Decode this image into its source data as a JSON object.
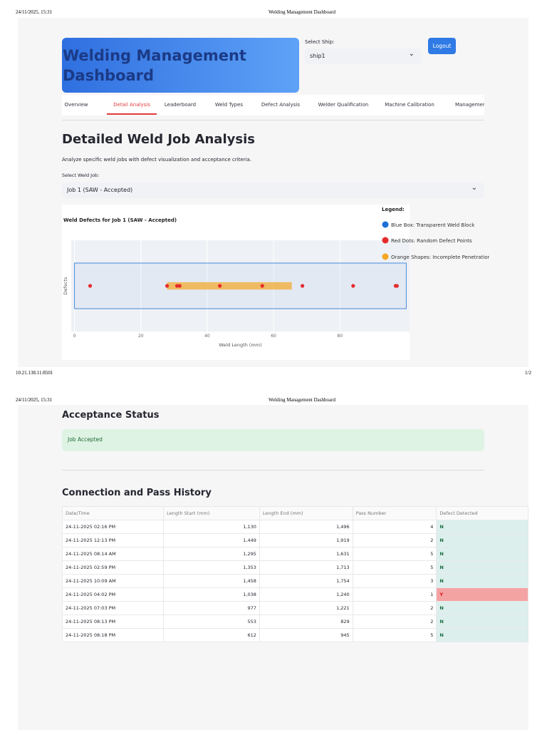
{
  "print_header": {
    "date": "24/11/2025, 15:31",
    "title": "Welding Management Dashboard"
  },
  "print_footer": {
    "url": "10.21.138.11:8501",
    "page": "1/2"
  },
  "print_header_2": {
    "date": "24/11/2025, 15:31",
    "title": "Welding Management Dashboard"
  },
  "app": {
    "title": "Welding Management Dashboard",
    "ship_label": "Select Ship:",
    "ship_value": "ship1",
    "logout": "Logout",
    "tabs": [
      "Overview",
      "Detail Analysis",
      "Leaderboard",
      "Weld Types",
      "Defect Analysis",
      "Welder Qualification",
      "Machine Calibration",
      "Management"
    ],
    "active_tab": 1
  },
  "section": {
    "heading": "Detailed Weld Job Analysis",
    "description": "Analyze specific weld jobs with defect visualization and acceptance criteria.",
    "job_label": "Select Weld Job:",
    "job_value": "Job 1 (SAW - Accepted)"
  },
  "chart_data": {
    "type": "scatter",
    "title": "Weld Defects for Job 1 (SAW - Accepted)",
    "xlabel": "Weld Length (mm)",
    "ylabel": "Defects",
    "xlim": [
      -1,
      101
    ],
    "ylim": [
      -1,
      1
    ],
    "xticks": [
      0,
      20,
      40,
      60,
      80
    ],
    "legend_title": "Legend:",
    "weld_block": {
      "name": "Blue Box: Transparent Weld Block",
      "color": "#1f6fd6",
      "x": [
        0,
        100
      ],
      "y": [
        -0.5,
        0.5
      ]
    },
    "series": [
      {
        "name": "Red Dots: Random Defect Points",
        "color": "#e52b2b",
        "x": [
          4.7,
          27.9,
          30.9,
          31.7,
          43.8,
          56.6,
          68.7,
          84.0,
          96.8,
          97.2
        ],
        "values": [
          0,
          0,
          0,
          0,
          0,
          0,
          0,
          0,
          0,
          0
        ]
      }
    ],
    "penetration": {
      "name": "Orange Shapes: Incomplete Penetration",
      "color": "#f5a623",
      "x": [
        27.9,
        65.5
      ],
      "y": [
        -0.05,
        0.05
      ]
    }
  },
  "acceptance": {
    "heading": "Acceptance Status",
    "status": "Job Accepted"
  },
  "history": {
    "heading": "Connection and Pass History",
    "columns": [
      "Date/Time",
      "Length Start (mm)",
      "Length End (mm)",
      "Pass Number",
      "Defect Detected"
    ],
    "rows": [
      [
        "24-11-2025 02:16 PM",
        "1,130",
        "1,496",
        "4",
        "N"
      ],
      [
        "24-11-2025 12:13 PM",
        "1,449",
        "1,919",
        "2",
        "N"
      ],
      [
        "24-11-2025 08:14 AM",
        "1,295",
        "1,631",
        "5",
        "N"
      ],
      [
        "24-11-2025 02:59 PM",
        "1,353",
        "1,713",
        "5",
        "N"
      ],
      [
        "24-11-2025 10:09 AM",
        "1,458",
        "1,754",
        "3",
        "N"
      ],
      [
        "24-11-2025 04:02 PM",
        "1,038",
        "1,240",
        "1",
        "Y"
      ],
      [
        "24-11-2025 07:03 PM",
        "977",
        "1,221",
        "2",
        "N"
      ],
      [
        "24-11-2025 08:13 PM",
        "553",
        "829",
        "2",
        "N"
      ],
      [
        "24-11-2025 08:18 PM",
        "612",
        "945",
        "5",
        "N"
      ]
    ]
  }
}
